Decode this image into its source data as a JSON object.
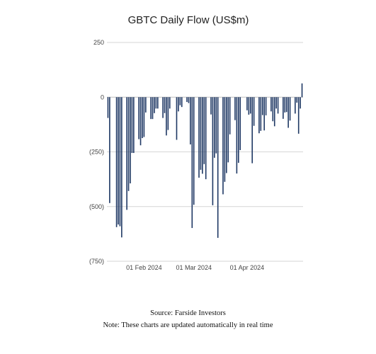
{
  "chart_data": {
    "type": "bar",
    "title": "GBTC Daily Flow (US$m)",
    "xlabel": "",
    "ylabel": "",
    "ylim": [
      -750,
      250
    ],
    "yticks": [
      250,
      0,
      -250,
      -500,
      -750
    ],
    "ytick_labels": [
      "250",
      "0",
      "(250)",
      "(500)",
      "(750)"
    ],
    "x_tick_labels": [
      {
        "date": "2024-02-01",
        "label": "01 Feb 2024"
      },
      {
        "date": "2024-03-01",
        "label": "01 Mar 2024"
      },
      {
        "date": "2024-04-01",
        "label": "01 Apr 2024"
      }
    ],
    "grid": "horizontal",
    "bar_color": "#1f3864",
    "series": [
      {
        "x": [
          "2024-01-11",
          "2024-01-12",
          "2024-01-16",
          "2024-01-17",
          "2024-01-18",
          "2024-01-19",
          "2024-01-22",
          "2024-01-23",
          "2024-01-24",
          "2024-01-25",
          "2024-01-26",
          "2024-01-29",
          "2024-01-30",
          "2024-01-31",
          "2024-02-01",
          "2024-02-02",
          "2024-02-05",
          "2024-02-06",
          "2024-02-07",
          "2024-02-08",
          "2024-02-09",
          "2024-02-12",
          "2024-02-13",
          "2024-02-14",
          "2024-02-15",
          "2024-02-16",
          "2024-02-20",
          "2024-02-21",
          "2024-02-22",
          "2024-02-23",
          "2024-02-26",
          "2024-02-27",
          "2024-02-28",
          "2024-02-29",
          "2024-03-01",
          "2024-03-04",
          "2024-03-05",
          "2024-03-06",
          "2024-03-07",
          "2024-03-08",
          "2024-03-11",
          "2024-03-12",
          "2024-03-13",
          "2024-03-14",
          "2024-03-15",
          "2024-03-18",
          "2024-03-19",
          "2024-03-20",
          "2024-03-21",
          "2024-03-22",
          "2024-03-25",
          "2024-03-26",
          "2024-03-27",
          "2024-03-28",
          "2024-04-01",
          "2024-04-02",
          "2024-04-03",
          "2024-04-04",
          "2024-04-05",
          "2024-04-08",
          "2024-04-09",
          "2024-04-10",
          "2024-04-11",
          "2024-04-12",
          "2024-04-15",
          "2024-04-16",
          "2024-04-17",
          "2024-04-18",
          "2024-04-19",
          "2024-04-22",
          "2024-04-23",
          "2024-04-24",
          "2024-04-25",
          "2024-04-26",
          "2024-04-29",
          "2024-04-30",
          "2024-05-01",
          "2024-05-02",
          "2024-05-03"
        ],
        "values": [
          -95,
          -484,
          -594,
          -582,
          -590,
          -641,
          -515,
          -429,
          -394,
          -255,
          -255,
          -192,
          -220,
          -187,
          -182,
          -70,
          -100,
          -100,
          -73,
          -52,
          -52,
          -95,
          -73,
          -175,
          -150,
          -52,
          -195,
          -65,
          -37,
          -45,
          -22,
          -27,
          -216,
          -598,
          -492,
          -368,
          -332,
          -350,
          -306,
          -375,
          -79,
          -494,
          -277,
          -257,
          -643,
          -444,
          -387,
          -347,
          -298,
          -170,
          -105,
          -349,
          -300,
          -242,
          -60,
          -80,
          -75,
          -302,
          -131,
          -165,
          -154,
          -82,
          -152,
          -83,
          -65,
          -110,
          -133,
          -52,
          -75,
          -99,
          -70,
          -68,
          -140,
          -107,
          -75,
          -25,
          -167,
          -52,
          63
        ]
      }
    ]
  },
  "footer": {
    "source": "Source: Farside Investors",
    "note": "Note: These charts are updated automatically in real time"
  }
}
